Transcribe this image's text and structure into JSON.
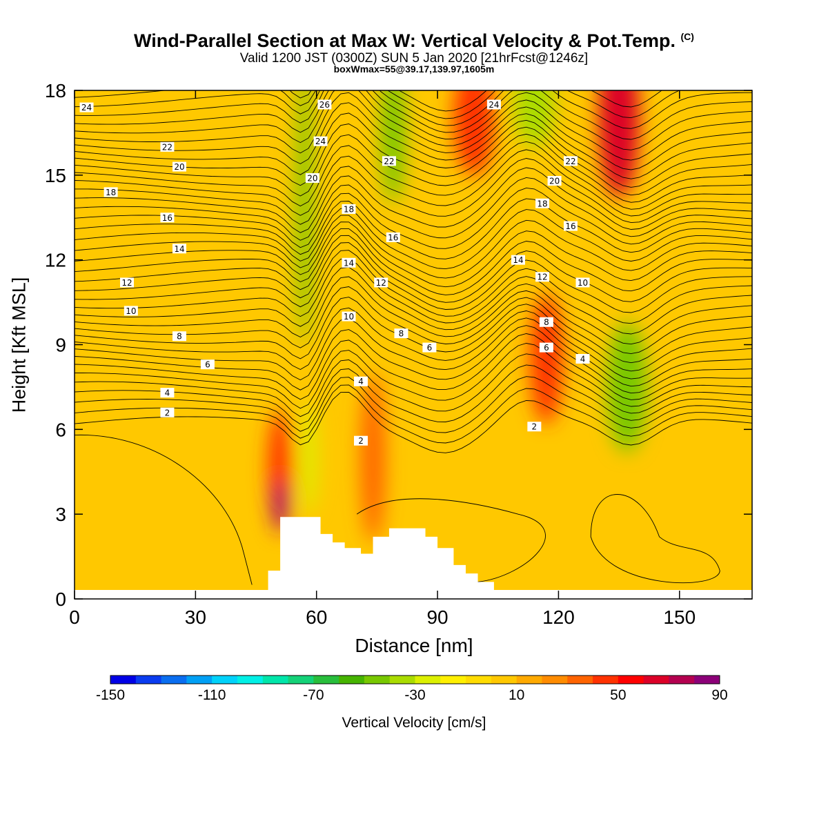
{
  "header": {
    "title": "Wind-Parallel Section at Max W: Vertical Velocity & Pot.Temp.",
    "copyright": "(C)",
    "valid_line": "Valid 1200 JST (0300Z) SUN 5 Jan 2020 [21hrFcst@1246z]",
    "box_line": "boxWmax=55@39.17,139.97,1605m"
  },
  "chart_data": {
    "type": "heatmap",
    "title": "Wind-Parallel Section at Max W: Vertical Velocity & Pot.Temp.",
    "xlabel": "Distance [nm]",
    "ylabel": "Height [Kft MSL]",
    "xlim": [
      0,
      168
    ],
    "ylim": [
      0,
      18
    ],
    "x_ticks": [
      0,
      30,
      60,
      90,
      120,
      150
    ],
    "y_ticks": [
      0,
      3,
      6,
      9,
      12,
      15,
      18
    ],
    "grid": false,
    "colorbar": {
      "label": "Vertical Velocity [cm/s]",
      "tick_labels": [
        -150,
        -110,
        -70,
        -30,
        10,
        50,
        90
      ],
      "levels": [
        -150,
        -140,
        -130,
        -120,
        -110,
        -100,
        -90,
        -80,
        -70,
        -60,
        -50,
        -40,
        -30,
        -20,
        -10,
        0,
        10,
        20,
        30,
        40,
        50,
        60,
        70,
        80,
        90
      ],
      "colors": [
        "#0000e6",
        "#0a3cf0",
        "#0a6ef0",
        "#00a0f5",
        "#00d2fa",
        "#00f0e6",
        "#00e6aa",
        "#14d278",
        "#28be3c",
        "#46b400",
        "#78c800",
        "#aadc00",
        "#dcf000",
        "#fff000",
        "#ffdc00",
        "#ffc800",
        "#ffaa00",
        "#ff8c00",
        "#ff6400",
        "#ff3200",
        "#ff0000",
        "#dc0028",
        "#b40050",
        "#8c0078",
        "#640096"
      ]
    },
    "series": [
      {
        "name": "Vertical Velocity [cm/s]",
        "features": [
          {
            "x": 51,
            "y": 4.5,
            "w": 3,
            "h": 2.2,
            "value": 45
          },
          {
            "x": 51,
            "y": 3.3,
            "w": 1.6,
            "h": 0.9,
            "value": 85
          },
          {
            "x": 74,
            "y": 5.0,
            "w": 3,
            "h": 3.0,
            "value": 30
          },
          {
            "x": 99,
            "y": 17.0,
            "w": 5,
            "h": 2.0,
            "value": 45
          },
          {
            "x": 117,
            "y": 8.5,
            "w": 4,
            "h": 2.3,
            "value": 45
          },
          {
            "x": 135,
            "y": 17.0,
            "w": 5,
            "h": 2.8,
            "value": 65
          },
          {
            "x": 57,
            "y": 14.0,
            "w": 2,
            "h": 5.0,
            "value": -45
          },
          {
            "x": 79,
            "y": 16.5,
            "w": 3,
            "h": 2.5,
            "value": -50
          },
          {
            "x": 114,
            "y": 17.5,
            "w": 5,
            "h": 1.5,
            "value": -40
          },
          {
            "x": 137,
            "y": 7.5,
            "w": 5,
            "h": 2.3,
            "value": -50
          },
          {
            "x": 58,
            "y": 5.0,
            "w": 2,
            "h": 2.0,
            "value": -30
          }
        ]
      },
      {
        "name": "Potential Temperature",
        "contour_labels": [
          {
            "x": 3,
            "y": 17.4,
            "text": "24"
          },
          {
            "x": 23,
            "y": 16.0,
            "text": "22"
          },
          {
            "x": 26,
            "y": 15.3,
            "text": "20"
          },
          {
            "x": 9,
            "y": 14.4,
            "text": "18"
          },
          {
            "x": 23,
            "y": 13.5,
            "text": "16"
          },
          {
            "x": 26,
            "y": 12.4,
            "text": "14"
          },
          {
            "x": 13,
            "y": 11.2,
            "text": "12"
          },
          {
            "x": 14,
            "y": 10.2,
            "text": "10"
          },
          {
            "x": 26,
            "y": 9.3,
            "text": "8"
          },
          {
            "x": 33,
            "y": 8.3,
            "text": "6"
          },
          {
            "x": 23,
            "y": 7.3,
            "text": "4"
          },
          {
            "x": 23,
            "y": 6.6,
            "text": "2"
          },
          {
            "x": 62,
            "y": 17.5,
            "text": "26"
          },
          {
            "x": 61,
            "y": 16.2,
            "text": "24"
          },
          {
            "x": 59,
            "y": 14.9,
            "text": "20"
          },
          {
            "x": 68,
            "y": 13.8,
            "text": "18"
          },
          {
            "x": 68,
            "y": 11.9,
            "text": "14"
          },
          {
            "x": 68,
            "y": 10.0,
            "text": "10"
          },
          {
            "x": 76,
            "y": 11.2,
            "text": "12"
          },
          {
            "x": 78,
            "y": 15.5,
            "text": "22"
          },
          {
            "x": 79,
            "y": 12.8,
            "text": "16"
          },
          {
            "x": 81,
            "y": 9.4,
            "text": "8"
          },
          {
            "x": 88,
            "y": 8.9,
            "text": "6"
          },
          {
            "x": 71,
            "y": 7.7,
            "text": "4"
          },
          {
            "x": 71,
            "y": 5.6,
            "text": "2"
          },
          {
            "x": 104,
            "y": 17.5,
            "text": "24"
          },
          {
            "x": 123,
            "y": 15.5,
            "text": "22"
          },
          {
            "x": 119,
            "y": 14.8,
            "text": "20"
          },
          {
            "x": 116,
            "y": 14.0,
            "text": "18"
          },
          {
            "x": 123,
            "y": 13.2,
            "text": "16"
          },
          {
            "x": 110,
            "y": 12.0,
            "text": "14"
          },
          {
            "x": 116,
            "y": 11.4,
            "text": "12"
          },
          {
            "x": 126,
            "y": 11.2,
            "text": "10"
          },
          {
            "x": 117,
            "y": 9.8,
            "text": "8"
          },
          {
            "x": 117,
            "y": 8.9,
            "text": "6"
          },
          {
            "x": 126,
            "y": 8.5,
            "text": "4"
          },
          {
            "x": 114,
            "y": 6.1,
            "text": "2"
          }
        ]
      },
      {
        "name": "Terrain",
        "x": [
          45,
          48,
          48,
          51,
          51,
          61,
          61,
          64,
          64,
          67,
          67,
          71,
          71,
          74,
          74,
          78,
          78,
          87,
          87,
          90,
          90,
          94,
          94,
          97,
          97,
          100,
          100,
          104,
          104,
          168
        ],
        "y": [
          0.3,
          0.3,
          1.0,
          1.0,
          2.9,
          2.9,
          2.3,
          2.3,
          2.0,
          2.0,
          1.8,
          1.8,
          1.6,
          1.6,
          2.2,
          2.2,
          2.5,
          2.5,
          2.2,
          2.2,
          1.8,
          1.8,
          1.2,
          1.2,
          0.9,
          0.9,
          0.6,
          0.6,
          0.3,
          0.3
        ]
      }
    ]
  }
}
